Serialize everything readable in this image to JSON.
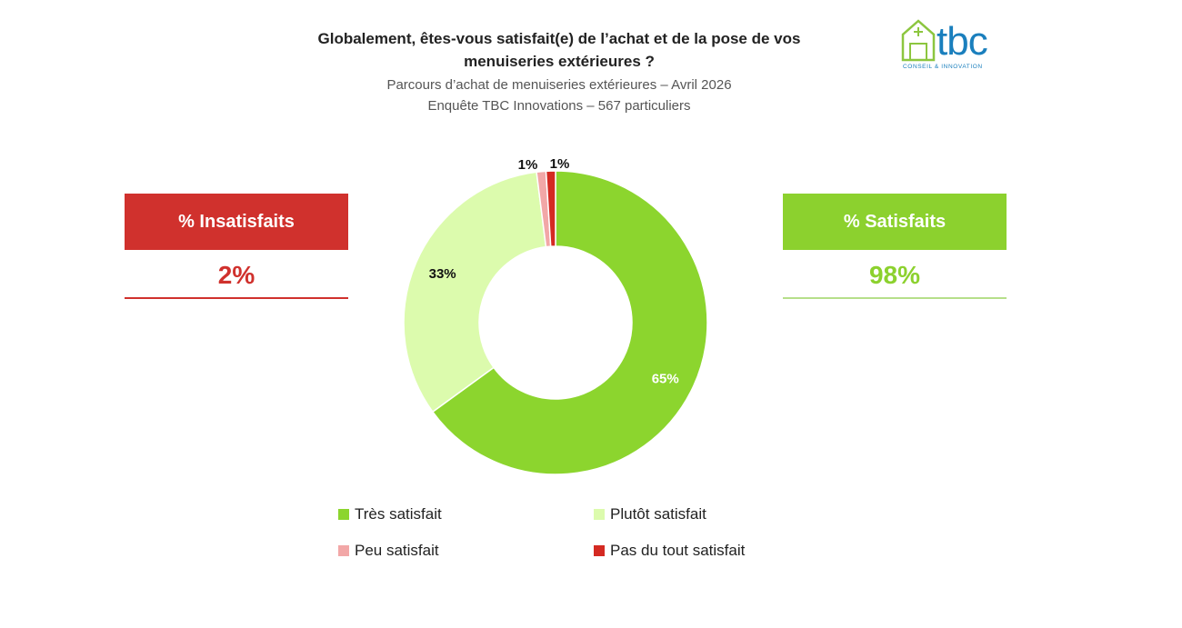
{
  "header": {
    "title_line1": "Globalement, êtes-vous satisfait(e) de l’achat et de la pose de vos",
    "title_line2": "menuiseries extérieures ?",
    "subtitle_line1": "Parcours d’achat de menuiseries extérieures – Avril 2026",
    "subtitle_line2": "Enquête TBC Innovations – 567 particuliers"
  },
  "logo": {
    "word": "tbc",
    "tagline": "CONSEIL & INNOVATION",
    "color": "#1a7fbd",
    "icon_color": "#8cc63f"
  },
  "kpis": {
    "insatisfaits": {
      "label": "% Insatisfaits",
      "value": "2%",
      "color": "#d0312d"
    },
    "satisfaits": {
      "label": "% Satisfaits",
      "value": "98%",
      "color": "#8cd12e"
    }
  },
  "chart_data": {
    "type": "pie",
    "donut": true,
    "title": "",
    "slices": [
      {
        "name": "Très satisfait",
        "value": 65,
        "label": "65%",
        "color": "#8cd52e"
      },
      {
        "name": "Plutôt satisfait",
        "value": 33,
        "label": "33%",
        "color": "#dcfbad"
      },
      {
        "name": "Peu satisfait",
        "value": 1,
        "label": "1%",
        "color": "#f2a7a7"
      },
      {
        "name": "Pas du tout satisfait",
        "value": 1,
        "label": "1%",
        "color": "#d42a22"
      }
    ],
    "legend_position": "bottom"
  }
}
